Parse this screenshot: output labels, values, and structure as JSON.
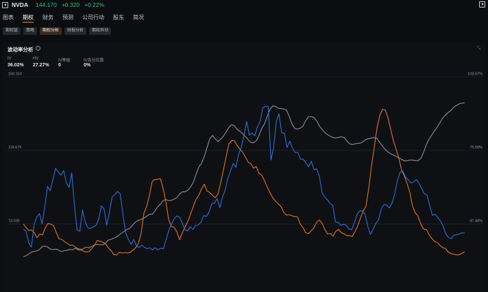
{
  "header": {
    "ticker": "NVDA",
    "price": "144.170",
    "change": "+0.320",
    "change_pct": "+0.22%",
    "positive_color": "#2fc46b"
  },
  "tabs": [
    {
      "label": "图表",
      "active": false
    },
    {
      "label": "期权",
      "active": true
    },
    {
      "label": "财务",
      "active": false
    },
    {
      "label": "预测",
      "active": false
    },
    {
      "label": "公司行动",
      "active": false
    },
    {
      "label": "股东",
      "active": false
    },
    {
      "label": "简况",
      "active": false
    }
  ],
  "subtabs": [
    {
      "label": "期权链",
      "active": false
    },
    {
      "label": "策略",
      "active": false
    },
    {
      "label": "期权分析",
      "active": true
    },
    {
      "label": "财报分析",
      "active": false
    },
    {
      "label": "期权异动",
      "active": false
    }
  ],
  "panel": {
    "title": "波动率分析",
    "info_glyph": "i",
    "corner_glyph": "⤡",
    "stats": [
      {
        "label": "IV",
        "value": "36.02%"
      },
      {
        "label": "HV",
        "value": "27.27%"
      },
      {
        "label": "IV等级",
        "value": "0"
      },
      {
        "label": "IV百分位数",
        "value": "0%"
      }
    ]
  },
  "chart_data": {
    "type": "line",
    "left_axis_ticks": [
      "160.316",
      "116.675",
      "73.035"
    ],
    "right_axis_ticks": [
      "103.67%",
      "75.58%",
      "47.48%"
    ],
    "left_range": [
      73.035,
      160.316
    ],
    "right_range": [
      47.48,
      103.67
    ],
    "series": [
      {
        "color": "#2f6fd8",
        "axis": "right",
        "values": [
          45.5,
          44.8,
          40.2,
          38.6,
          47.2,
          50.1,
          51.4,
          47.6,
          54.1,
          61.8,
          60.2,
          64.5,
          68.7,
          67.3,
          66.1,
          67.9,
          63.2,
          61.5,
          67.0,
          54.7,
          45.1,
          44.7,
          52.8,
          48.3,
          46.0,
          45.8,
          46.4,
          46.9,
          49.3,
          54.4,
          53.3,
          47.0,
          52.0,
          57.8,
          58.7,
          59.9,
          59.0,
          51.2,
          44.3,
          41.7,
          39.7,
          41.6,
          39.1,
          38.5,
          39.4,
          38.6,
          38.0,
          38.4,
          37.5,
          38.4,
          37.6,
          38.2,
          38.0,
          41.2,
          44.8,
          47.3,
          49.4,
          50.5,
          50.1,
          48.0,
          45.3,
          44.8,
          46.4,
          45.4,
          46.8,
          47.1,
          48.1,
          50.7,
          50.3,
          52.1,
          55.1,
          55.4,
          57.2,
          53.7,
          57.8,
          60.4,
          64.9,
          67.8,
          70.6,
          69.1,
          74.1,
          76.8,
          81.4,
          86.6,
          81.4,
          82.2,
          81.2,
          84.6,
          86.7,
          92.0,
          92.3,
          92.5,
          71.9,
          76.6,
          86.6,
          89.6,
          82.3,
          82.2,
          76.7,
          79.1,
          76.6,
          74.8,
          74.8,
          72.2,
          72.3,
          70.7,
          69.3,
          71.5,
          68.2,
          68.6,
          65.7,
          59.5,
          57.8,
          56.7,
          55.3,
          54.5,
          48.2,
          48.1,
          47.0,
          47.4,
          47.0,
          45.5,
          45.3,
          47.8,
          51.1,
          52.5,
          52.4,
          51.1,
          46.6,
          43.5,
          45.5,
          47.8,
          49.0,
          53.2,
          54.9,
          54.7,
          53.6,
          55.4,
          58.9,
          64.1,
          67.3,
          67.7,
          65.4,
          64.4,
          63.1,
          63.6,
          64.4,
          63.1,
          61.0,
          59.0,
          58.6,
          54.5,
          50.8,
          51.2,
          50.0,
          48.6,
          46.6,
          43.6,
          42.3,
          41.9,
          43.2,
          43.3,
          43.6,
          44.1,
          44.0
        ]
      },
      {
        "color": "#e67320",
        "axis": "right",
        "values": [
          47.5,
          46.1,
          45.0,
          45.2,
          44.2,
          42.2,
          43.6,
          43.3,
          46.0,
          47.7,
          47.4,
          46.9,
          44.3,
          41.8,
          41.6,
          40.7,
          40.1,
          39.3,
          39.4,
          38.6,
          38.0,
          37.9,
          37.0,
          36.8,
          36.9,
          38.1,
          39.4,
          41.2,
          40.9,
          40.5,
          39.9,
          38.4,
          37.3,
          35.8,
          35.6,
          36.6,
          36.4,
          36.5,
          36.4,
          36.5,
          37.5,
          38.4,
          40.2,
          44.0,
          51.6,
          54.2,
          58.4,
          63.7,
          64.5,
          64.5,
          64.8,
          61.0,
          56.1,
          49.2,
          46.6,
          46.2,
          44.5,
          41.5,
          44.1,
          46.3,
          48.5,
          51.2,
          54.1,
          56.9,
          58.4,
          60.9,
          62.7,
          60.1,
          59.5,
          58.4,
          57.5,
          58.9,
          63.3,
          68.2,
          73.3,
          78.1,
          79.4,
          79.2,
          77.5,
          76.1,
          74.9,
          73.1,
          71.1,
          70.5,
          68.8,
          69.4,
          66.8,
          66.1,
          64.0,
          61.6,
          59.4,
          57.5,
          56.2,
          55.1,
          54.1,
          51.9,
          50.9,
          51.0,
          50.6,
          50.3,
          50.2,
          47.5,
          46.1,
          44.1,
          43.8,
          44.9,
          46.0,
          48.2,
          49.0,
          47.7,
          45.3,
          43.7,
          43.8,
          42.8,
          44.7,
          45.4,
          44.1,
          43.7,
          43.0,
          43.0,
          42.7,
          44.6,
          46.8,
          49.8,
          52.5,
          54.3,
          61.1,
          69.5,
          76.7,
          84.1,
          88.8,
          91.2,
          91.1,
          88.1,
          83.6,
          79.3,
          76.0,
          72.5,
          68.0,
          65.8,
          62.9,
          59.5,
          54.1,
          51.7,
          50.4,
          47.4,
          45.5,
          45.4,
          43.4,
          42.0,
          40.7,
          40.4,
          39.3,
          38.4,
          38.1,
          36.8,
          36.2,
          35.9,
          35.7,
          35.7,
          36.3,
          36.9
        ]
      },
      {
        "color": "#8e9096",
        "axis": "right",
        "values": [
          35.0,
          35.3,
          36.0,
          36.7,
          37.0,
          37.2,
          37.8,
          38.9,
          39.0,
          38.6,
          37.8,
          37.7,
          37.9,
          37.4,
          36.9,
          37.3,
          37.4,
          37.8,
          37.6,
          38.2,
          37.6,
          37.4,
          38.2,
          38.6,
          38.3,
          38.9,
          39.5,
          39.7,
          39.5,
          39.6,
          40.1,
          41.3,
          41.6,
          42.1,
          42.5,
          43.3,
          44.1,
          44.8,
          45.5,
          46.0,
          47.2,
          48.3,
          48.9,
          49.2,
          49.7,
          50.4,
          51.2,
          51.2,
          52.4,
          54.0,
          55.0,
          56.4,
          56.8,
          56.4,
          56.5,
          57.0,
          57.6,
          58.9,
          59.8,
          59.8,
          60.4,
          61.6,
          63.4,
          66.4,
          69.2,
          70.6,
          73.2,
          76.6,
          80.0,
          81.3,
          80.0,
          79.0,
          79.9,
          81.0,
          82.6,
          84.4,
          85.4,
          85.0,
          83.6,
          82.9,
          82.0,
          80.9,
          79.7,
          78.6,
          78.5,
          79.3,
          81.4,
          84.1,
          85.8,
          88.7,
          91.3,
          92.6,
          92.4,
          91.7,
          91.6,
          91.4,
          91.0,
          88.6,
          85.6,
          84.0,
          83.7,
          84.1,
          84.8,
          87.0,
          88.4,
          88.5,
          88.2,
          86.9,
          84.9,
          83.6,
          82.4,
          81.6,
          81.0,
          80.5,
          80.3,
          80.6,
          80.8,
          80.5,
          79.2,
          78.1,
          77.8,
          78.1,
          78.3,
          78.4,
          79.0,
          79.8,
          80.1,
          80.3,
          80.5,
          80.1,
          78.7,
          77.2,
          76.0,
          75.0,
          74.3,
          73.8,
          73.3,
          72.8,
          72.1,
          71.6,
          71.7,
          71.9,
          71.9,
          71.7,
          71.7,
          72.6,
          74.8,
          77.8,
          79.9,
          81.5,
          83.1,
          84.5,
          86.3,
          88.0,
          89.1,
          90.1,
          90.9,
          92.1,
          92.8,
          93.4,
          93.6,
          93.8
        ]
      }
    ]
  }
}
